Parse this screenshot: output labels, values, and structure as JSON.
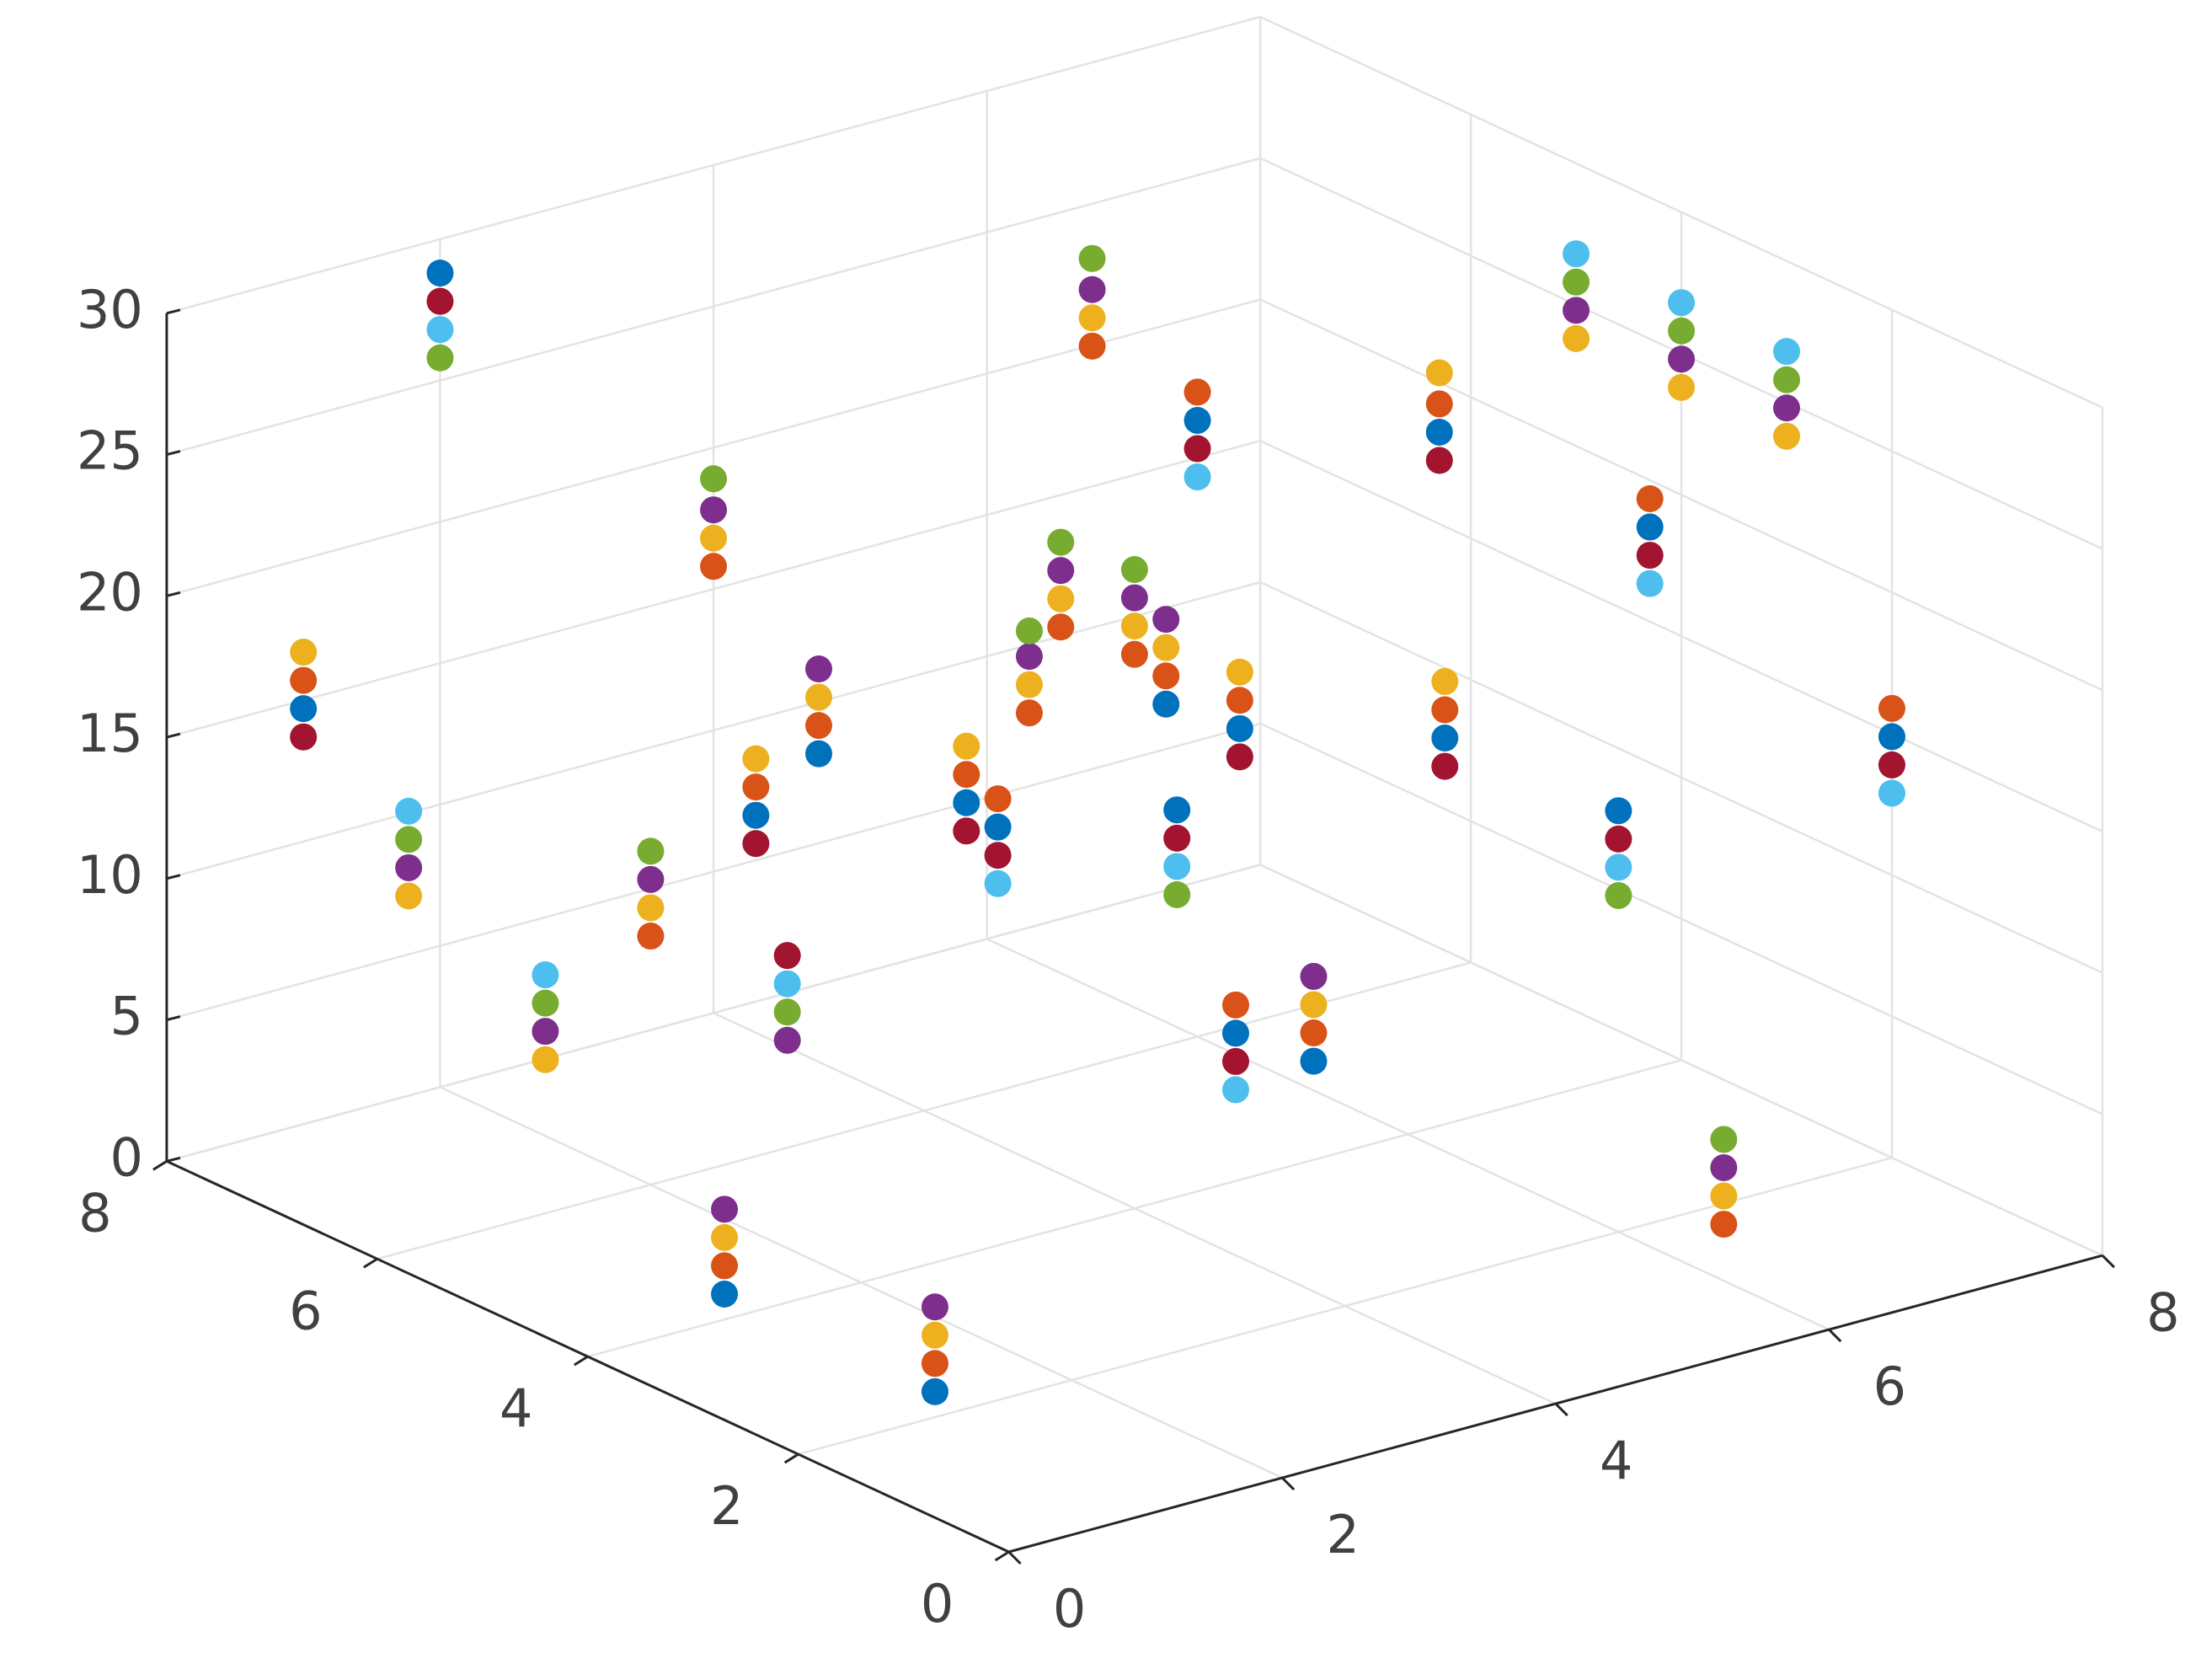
{
  "chart_data": {
    "type": "scatter3d",
    "xlim": [
      0,
      8
    ],
    "ylim": [
      0,
      8
    ],
    "zlim": [
      0,
      30
    ],
    "xticks": [
      0,
      2,
      4,
      6,
      8
    ],
    "yticks": [
      0,
      2,
      4,
      6,
      8
    ],
    "zticks": [
      0,
      5,
      10,
      15,
      20,
      25,
      30
    ],
    "grid": true,
    "series": [
      {
        "color": "#0072BD",
        "x": [
          2,
          1,
          2,
          4,
          1,
          1,
          2,
          3,
          5,
          6,
          4,
          2,
          3.2,
          3,
          7,
          5.5,
          7,
          6,
          8
        ],
        "y": [
          8,
          8,
          5,
          7,
          4,
          2,
          3,
          4,
          5,
          6,
          3,
          1,
          2,
          1,
          5,
          3,
          3,
          2,
          2
        ],
        "z": [
          28.8,
          14.7,
          14.8,
          10.9,
          0.9,
          0.9,
          18.7,
          14.8,
          14.8,
          21.8,
          18.7,
          21.9,
          10.7,
          11.7,
          21.8,
          16.4,
          21.9,
          14.9,
          14.9
        ]
      },
      {
        "color": "#D95319",
        "x": [
          1,
          2,
          4,
          2,
          4,
          1,
          1,
          2,
          3,
          4,
          5,
          6,
          4,
          5,
          6,
          4,
          3.2,
          3,
          7,
          5.5,
          7,
          8,
          6
        ],
        "y": [
          8,
          6,
          8,
          5,
          7,
          4,
          2,
          3,
          4,
          5,
          6,
          7,
          4,
          5,
          6,
          3,
          2,
          1,
          5,
          3,
          3,
          2,
          1
        ],
        "z": [
          15.7,
          8.8,
          15.8,
          15.8,
          11.9,
          1.9,
          1.9,
          19.7,
          15.8,
          15.8,
          15.8,
          22.7,
          19.6,
          15.8,
          22.8,
          19.7,
          11.7,
          12.7,
          22.8,
          17.4,
          22.9,
          15.9,
          2.0
        ]
      },
      {
        "color": "#EDB120",
        "x": [
          1,
          1,
          2,
          2,
          4,
          2,
          4,
          1,
          1,
          2,
          4,
          5,
          6,
          4,
          5,
          4,
          3,
          7,
          5.5,
          8,
          8,
          8,
          6
        ],
        "y": [
          8,
          7,
          7,
          6,
          8,
          5,
          7,
          4,
          2,
          3,
          5,
          6,
          7,
          4,
          5,
          3,
          1,
          5,
          3,
          5,
          4,
          3,
          1
        ],
        "z": [
          16.7,
          9.8,
          2.7,
          9.8,
          16.8,
          16.8,
          12.9,
          2.9,
          2.9,
          20.7,
          16.8,
          16.8,
          23.7,
          20.6,
          16.8,
          20.7,
          13.7,
          23.9,
          18.4,
          23.8,
          23.8,
          23.8,
          3.0
        ]
      },
      {
        "color": "#7E2F8E",
        "x": [
          1,
          2,
          2,
          4,
          4,
          3,
          1,
          1,
          4,
          5,
          6,
          4,
          5,
          3,
          8,
          8,
          8,
          6
        ],
        "y": [
          7,
          7,
          6,
          8,
          7,
          6,
          4,
          2,
          5,
          6,
          7,
          4,
          5,
          1,
          5,
          4,
          3,
          1
        ],
        "z": [
          10.8,
          3.7,
          10.8,
          17.8,
          13.9,
          3.8,
          3.9,
          3.9,
          17.8,
          17.8,
          24.7,
          21.6,
          17.8,
          14.7,
          24.8,
          24.8,
          24.8,
          4.0
        ]
      },
      {
        "color": "#77AC30",
        "x": [
          2,
          1,
          2,
          2,
          4,
          3,
          4,
          5,
          6,
          4,
          2,
          8,
          8,
          8,
          6,
          6
        ],
        "y": [
          8,
          7,
          7,
          6,
          8,
          6,
          5,
          6,
          7,
          4,
          1,
          5,
          4,
          3,
          2,
          1
        ],
        "z": [
          25.8,
          11.8,
          4.7,
          11.8,
          18.9,
          4.8,
          18.7,
          18.8,
          25.8,
          22.6,
          18.9,
          25.8,
          25.8,
          25.8,
          11.9,
          5.0
        ]
      },
      {
        "color": "#4DBEEE",
        "x": [
          2,
          1,
          2,
          3,
          3,
          6,
          2,
          3.2,
          8,
          8,
          8,
          7,
          6,
          8
        ],
        "y": [
          8,
          7,
          7,
          6,
          4,
          6,
          1,
          2,
          5,
          4,
          3,
          3,
          2,
          2
        ],
        "z": [
          26.8,
          12.8,
          5.7,
          5.8,
          12.8,
          19.8,
          19.9,
          8.7,
          26.8,
          26.8,
          26.8,
          19.9,
          12.9,
          12.9
        ]
      },
      {
        "color": "#A2142F",
        "x": [
          2,
          1,
          2,
          3,
          2,
          3,
          6,
          4,
          2,
          3.2,
          7,
          5.5,
          7,
          6,
          8
        ],
        "y": [
          8,
          8,
          5,
          6,
          3,
          4,
          6,
          3,
          1,
          2,
          5,
          3,
          3,
          2,
          2
        ],
        "z": [
          27.8,
          13.7,
          13.8,
          6.8,
          17.7,
          13.8,
          20.8,
          17.7,
          20.9,
          9.7,
          20.8,
          15.4,
          20.9,
          13.9,
          13.9
        ]
      }
    ]
  }
}
